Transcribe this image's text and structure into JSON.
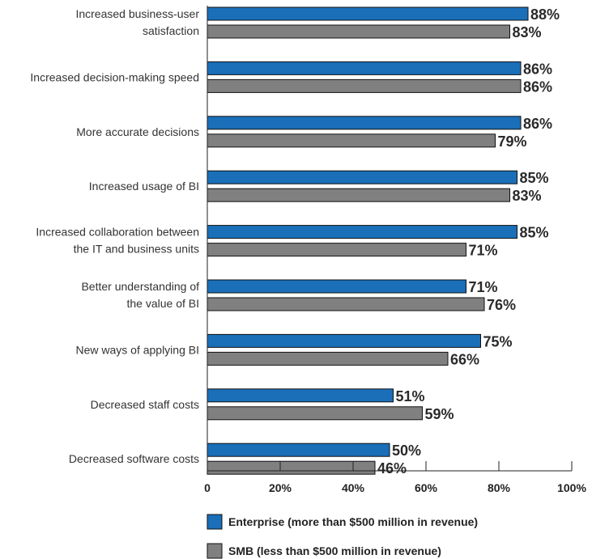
{
  "chart_data": {
    "type": "bar",
    "orientation": "horizontal",
    "categories": [
      [
        "Increased business-user",
        "satisfaction"
      ],
      [
        "Increased decision-making speed"
      ],
      [
        "More accurate decisions"
      ],
      [
        "Increased usage of BI"
      ],
      [
        "Increased collaboration between",
        "the IT and business units"
      ],
      [
        "Better understanding of",
        "the value of BI"
      ],
      [
        "New ways of applying BI"
      ],
      [
        "Decreased staff costs"
      ],
      [
        "Decreased software costs"
      ]
    ],
    "series": [
      {
        "name": "Enterprise (more than $500 million in revenue)",
        "color": "#1a6fb8",
        "values": [
          88,
          86,
          86,
          85,
          85,
          71,
          75,
          51,
          50
        ],
        "value_labels": [
          "88%",
          "86%",
          "86%",
          "85%",
          "85%",
          "71%",
          "75%",
          "51%",
          "50%"
        ]
      },
      {
        "name": "SMB (less than $500 million in revenue)",
        "color": "#808080",
        "values": [
          83,
          86,
          79,
          83,
          71,
          76,
          66,
          59,
          46
        ],
        "value_labels": [
          "83%",
          "86%",
          "79%",
          "83%",
          "71%",
          "76%",
          "66%",
          "59%",
          "46%"
        ]
      }
    ],
    "xlim": [
      0,
      100
    ],
    "x_ticks": [
      0,
      20,
      40,
      60,
      80,
      100
    ],
    "x_tick_labels": [
      "0",
      "20%",
      "40%",
      "60%",
      "80%",
      "100%"
    ],
    "legend_position": "bottom"
  }
}
